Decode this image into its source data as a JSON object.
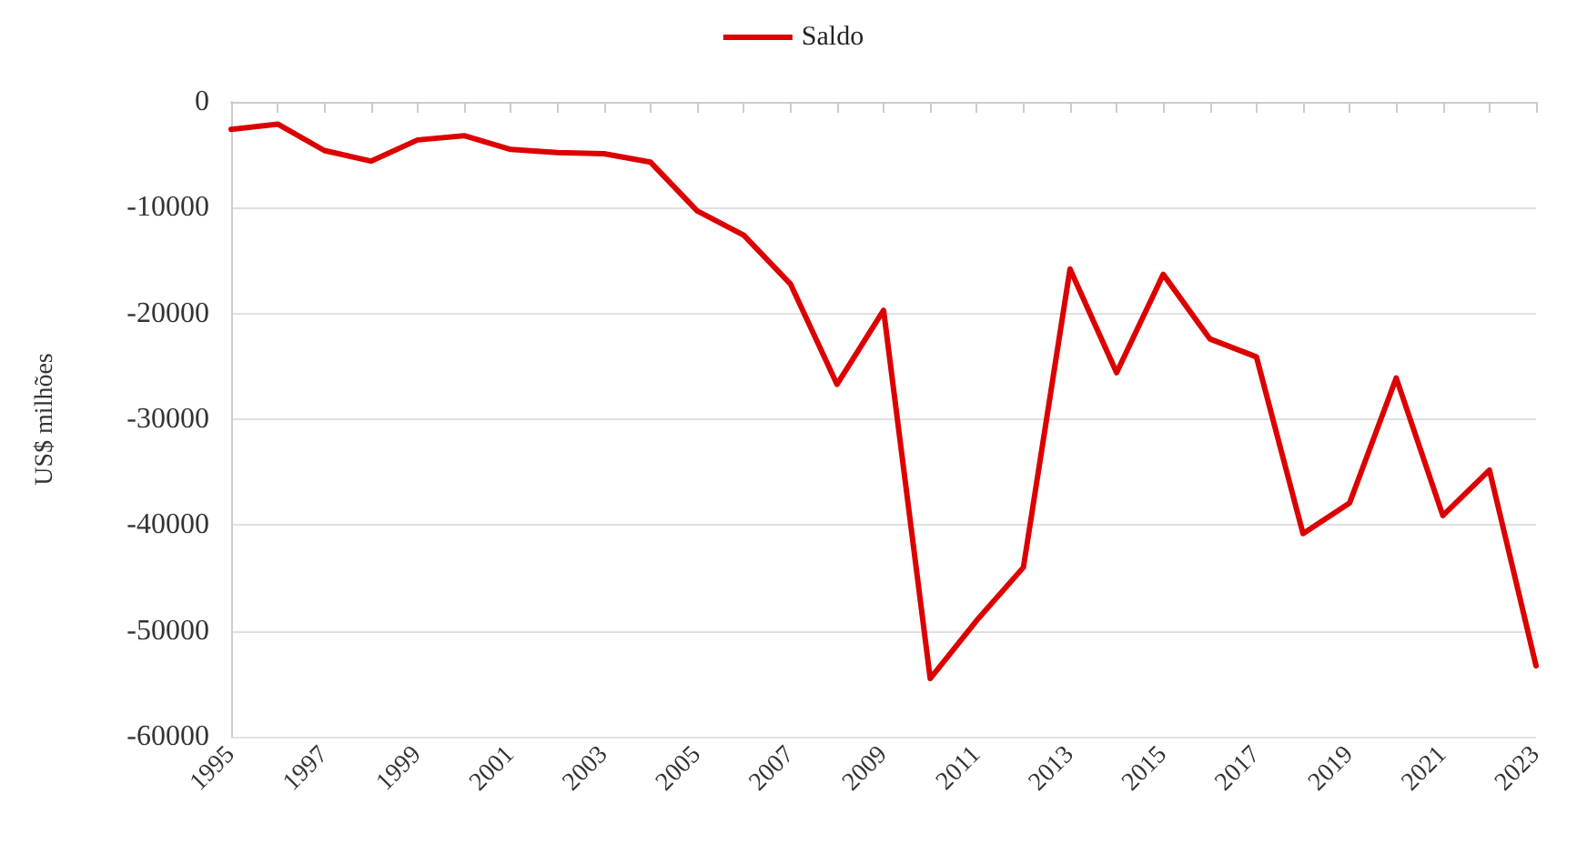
{
  "chart_data": {
    "type": "line",
    "ylabel": "US$ milhões",
    "x": [
      1995,
      1996,
      1997,
      1998,
      1999,
      2000,
      2001,
      2002,
      2003,
      2004,
      2005,
      2006,
      2007,
      2008,
      2009,
      2010,
      2011,
      2012,
      2013,
      2014,
      2015,
      2016,
      2017,
      2018,
      2019,
      2020,
      2021,
      2022,
      2023
    ],
    "series": [
      {
        "name": "Saldo",
        "color": "#dd0000",
        "values": [
          -2600,
          -2100,
          -4600,
          -5600,
          -3600,
          -3200,
          -4500,
          -4800,
          -4900,
          -5700,
          -10300,
          -12600,
          -17200,
          -26700,
          -19700,
          -54500,
          -49000,
          -44000,
          -15800,
          -25600,
          -16300,
          -22400,
          -24100,
          -40800,
          -37900,
          -26100,
          -39100,
          -34800,
          -53300
        ]
      }
    ],
    "xlim": [
      1995,
      2023
    ],
    "xticks": [
      1995,
      {
        "value": 1996,
        "label": null
      },
      1997,
      {
        "value": 1998,
        "label": null
      },
      1999,
      {
        "value": 2000,
        "label": null
      },
      2001,
      {
        "value": 2002,
        "label": null
      },
      2003,
      {
        "value": 2004,
        "label": null
      },
      2005,
      {
        "value": 2006,
        "label": null
      },
      2007,
      {
        "value": 2008,
        "label": null
      },
      2009,
      {
        "value": 2010,
        "label": null
      },
      2011,
      {
        "value": 2012,
        "label": null
      },
      2013,
      {
        "value": 2014,
        "label": null
      },
      2015,
      {
        "value": 2016,
        "label": null
      },
      2017,
      {
        "value": 2018,
        "label": null
      },
      2019,
      {
        "value": 2020,
        "label": null
      },
      2021,
      {
        "value": 2022,
        "label": null
      },
      2023
    ],
    "ylim": [
      -60000,
      0
    ],
    "yticks": [
      -60000,
      -50000,
      -40000,
      -30000,
      -20000,
      -10000,
      0
    ],
    "grid": "y",
    "legend": "top",
    "marker": "none",
    "line_style": "solid"
  }
}
